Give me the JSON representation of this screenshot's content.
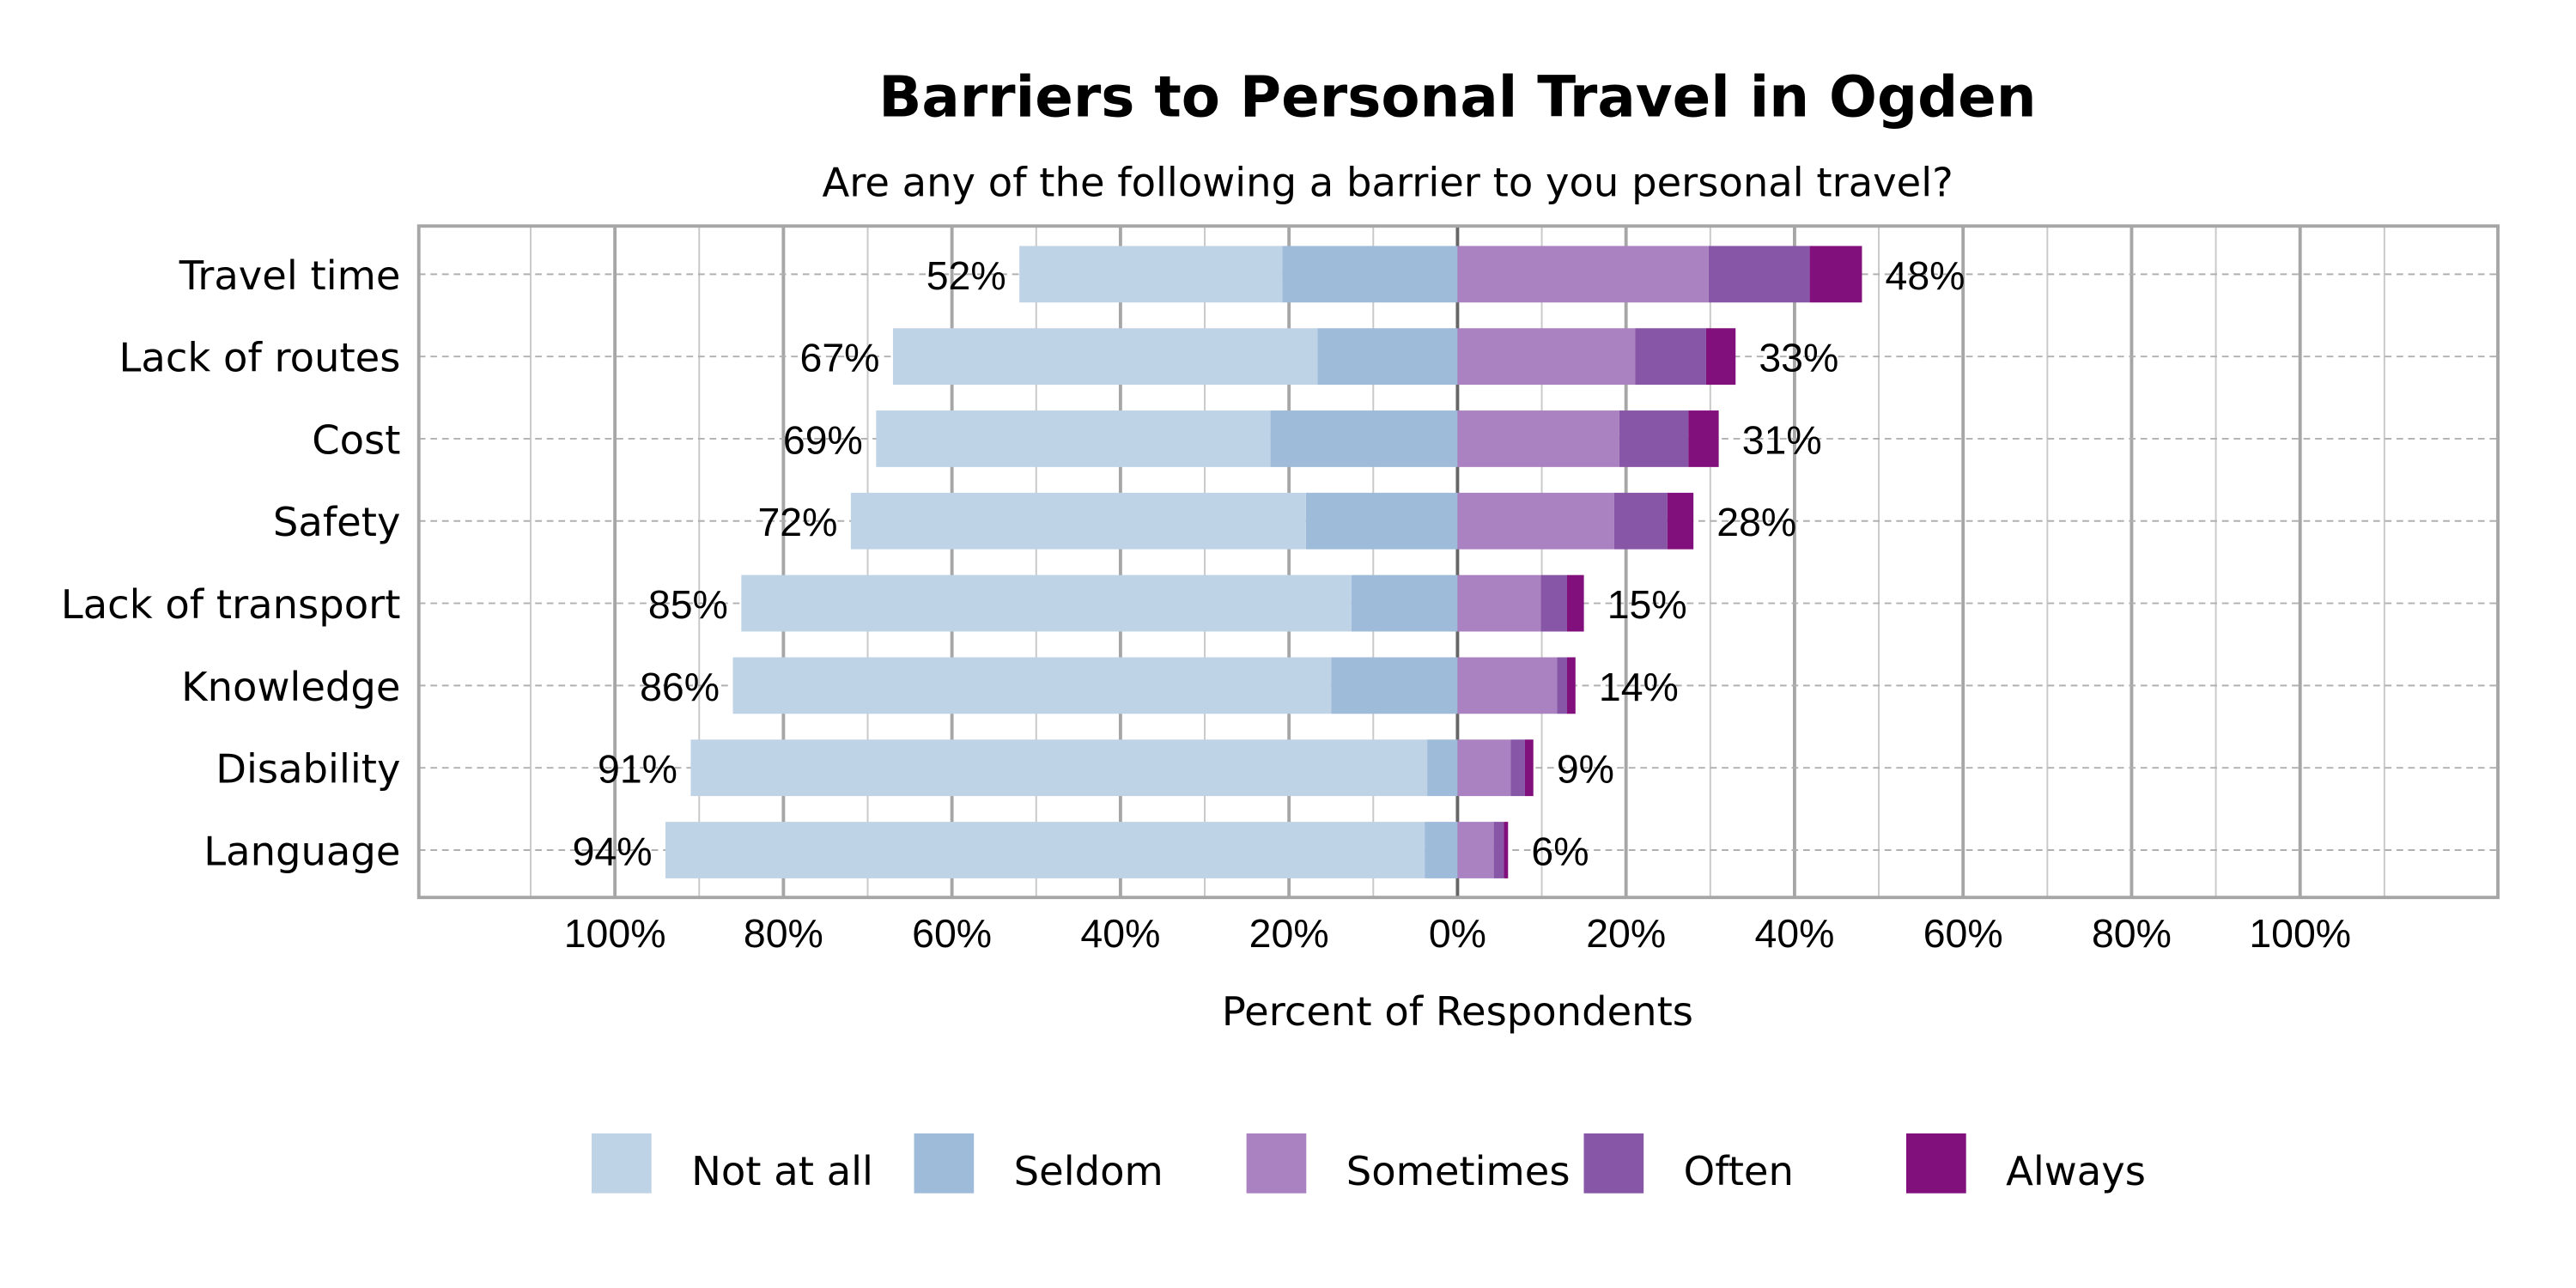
{
  "chart_data": {
    "type": "bar",
    "orientation": "horizontal-diverging-stacked",
    "title": "Barriers to Personal Travel in Ogden",
    "subtitle": "Are any of the following a barrier to you personal travel?",
    "xlabel": "Percent of Respondents",
    "xlim": [
      -120,
      120
    ],
    "x_ticks": [
      "100%",
      "80%",
      "60%",
      "40%",
      "20%",
      "0%",
      "20%",
      "40%",
      "60%",
      "80%",
      "100%"
    ],
    "x_tick_values": [
      -100,
      -80,
      -60,
      -40,
      -20,
      0,
      20,
      40,
      60,
      80,
      100
    ],
    "grid": true,
    "legend_position": "bottom",
    "categories": [
      "Travel time",
      "Lack of routes",
      "Cost",
      "Safety",
      "Lack of transport",
      "Knowledge",
      "Disability",
      "Language"
    ],
    "left_labels": [
      "52%",
      "67%",
      "69%",
      "72%",
      "85%",
      "86%",
      "91%",
      "94%"
    ],
    "right_labels": [
      "48%",
      "33%",
      "31%",
      "28%",
      "15%",
      "14%",
      "9%",
      "6%"
    ],
    "series": [
      {
        "name": "Not at all",
        "side": "left",
        "color": "#bfd3e6",
        "values": [
          31.2,
          50.4,
          46.8,
          54.0,
          72.4,
          71.0,
          87.4,
          90.1
        ]
      },
      {
        "name": "Seldom",
        "side": "left",
        "color": "#9ebbd9",
        "values": [
          20.8,
          16.6,
          22.2,
          18.0,
          12.6,
          15.0,
          3.6,
          3.9
        ]
      },
      {
        "name": "Sometimes",
        "side": "right",
        "color": "#ab82c1",
        "values": [
          29.8,
          21.1,
          19.2,
          18.6,
          9.9,
          11.8,
          6.3,
          4.3
        ]
      },
      {
        "name": "Often",
        "side": "right",
        "color": "#8856a7",
        "values": [
          12.0,
          8.4,
          8.2,
          6.3,
          3.1,
          1.2,
          1.7,
          1.2
        ]
      },
      {
        "name": "Always",
        "side": "right",
        "color": "#810f7c",
        "values": [
          6.2,
          3.5,
          3.6,
          3.1,
          2.0,
          1.0,
          1.0,
          0.5
        ]
      }
    ]
  }
}
